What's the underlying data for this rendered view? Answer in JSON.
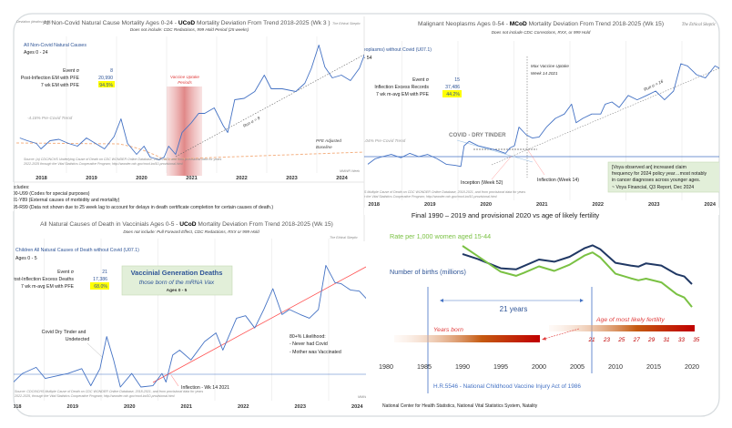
{
  "colors": {
    "series_blue": "#4472c4",
    "trend_red": "#ff5050",
    "baseline_orange": "#f4b183",
    "births_navy": "#203864",
    "rate_green": "#7ac143",
    "highlight_yellow": "#ffff00",
    "vaccine_band": "#e8a0a0"
  },
  "panels": {
    "top_left": {
      "title_pre": "All Non-Covid Natural Cause Mortality Ages 0-24 - ",
      "title_bold": "UCoD",
      "title_post": " Mortality Deviation From Trend  2018-2025 (Wk 3 )",
      "subtitle": "Does not include: CDC Redactions, 999 Hold Period (25 weeks)",
      "signature": "The Ethical Skeptic",
      "yaxis_label": "Deviation (deaths/week)",
      "series_label": "All Non-Covid Natural Causes",
      "ages": "Ages 0 - 24",
      "stats": [
        {
          "label": "Event σ",
          "value": "8"
        },
        {
          "label": "Post-Inflection EM with PFE",
          "value": "20,990"
        },
        {
          "label": "7 wk EM with PFE",
          "value": "94.5%"
        }
      ],
      "vaccine_label_1": "Vaccine Uptake",
      "vaccine_label_2": "Periods",
      "pre_covid_trend": "-4.18% Pre-Covid Trend",
      "run_sigma": "Run σ = 9",
      "pfe_label_1": "PFE Adjusted",
      "pfe_label_2": "Baseline",
      "source_1": "Source: (a) CDC/NCHS Underlying Cause of Death on CDC WONDER Online Database, 2018-2021, and from provisional data for years",
      "source_2": "2022-2025 through the Vital Statistics Cooperative Program; http://wonder.cdc.gov/mcd-icd10-provisional.html",
      "mmwr": "MMWR Week"
    },
    "excludes": {
      "heading": "Excludes:",
      "lines": [
        "R00-U99 (Codes for special purposes)",
        "V01-Y89 (External causes of morbidity and mortality)",
        "R95-R99 (Data not shown due to 25 week lag to account for delays in death certificate completion for certain causes of death.)"
      ]
    },
    "top_right": {
      "title_pre": "Malignant Neoplasms Ages 0-54 - ",
      "title_bold": "MCoD",
      "title_post": " Mortality Deviation From Trend  2018-2025 (Wk 15)",
      "subtitle": "Does not include CDC Corrections, RXX, or 999 Hold",
      "signature": "The Ethical Skeptic",
      "series_label": "C00-D48 (Malignant neoplasms) without Covid (U07.1)",
      "ages": "Ages 0 - 54",
      "stats": [
        {
          "label": "Event σ",
          "value": "15"
        },
        {
          "label": "Inflection Excess Records",
          "value": "37,486"
        },
        {
          "label": "7 wk m-avg EM with PFE",
          "value": "44.2%"
        }
      ],
      "max_uptake_1": "Max Vaccine Uptake",
      "max_uptake_2": "Week 14 2021",
      "run_sigma": "Run σ = 16",
      "dry_tinder": "COVID - DRY TINDER",
      "pre_covid_trend": "-0.04% Pre-Covid Trend",
      "inception": "Inception (Week 52)",
      "inflection": "Inflection (Week 14)",
      "quote_1": "[Voya observed an] increased claim",
      "quote_2": "frequency for 2024 policy year…most notably",
      "quote_3": "in cancer diagnoses across younger ages.",
      "quote_4": "~ Voya Financial, Q3 Report, Dec 2024",
      "source_1": "Source: CDC/NCHS Multiple Cause of Death on CDC WONDER Online Database, 2018-2021, and from provisional data for years",
      "source_2": "2022-2025, through the Vital Statistics Cooperative Program; http://wonder.cdc.gov/mcd-icd10-provisional.html"
    },
    "bottom_left": {
      "title_pre": "All Natural Causes of Death in Vaccinials Ages 0-5 - ",
      "title_bold": "UCoD",
      "title_post": " Mortality Deviation From Trend  2018-2025 (Wk 15)",
      "subtitle": "Does not include: Pull Forward Effect, CDC Redactions, RXX or 999 Hold",
      "signature": "The Ethical Skeptic",
      "series_label": "Children All Natural Causes of Death without Covid (U07.1)",
      "ages": "Ages 0 - 5",
      "stats": [
        {
          "label": "Event σ",
          "value": "21"
        },
        {
          "label": "Post-Inflection Excess Deaths",
          "value": "17,386"
        },
        {
          "label": "7 wk m-avg EM with PFE",
          "value": "68.0%"
        }
      ],
      "box_title": "Vaccinial Generation Deaths",
      "box_sub": "those born of the mRNA Vax",
      "box_ages": "Ages 0 - 5",
      "tinder_1": "Covid Dry Tinder and",
      "tinder_2": "Undetected",
      "likelihood_title": "80+% Likelihood:",
      "likelihood_1": "- Never had Covid",
      "likelihood_2": "- Mother was Vaccinated",
      "inflection": "Inflection - Wk 14 2021",
      "source_1": "Source: CDC/NCHS Multiple Cause of Death on CDC WONDER Online Database, 2018-2021, and from provisional data for years",
      "source_2": "2022-2025, through the Vital Statistics Cooperative Program; http://wonder.cdc.gov/mcd-icd10-provisional.html",
      "mmwr": "MMWR"
    },
    "bottom_right": {
      "title": "Final 1990 – 2019 and provisional 2020 vs age of likely fertility",
      "rate_label": "Rate per 1,000 women aged 15-44",
      "births_label": "Number of births (millions)",
      "span_label": "21 years",
      "years_born": "Years born",
      "fertility_label": "Age of most likely fertility",
      "ages": [
        "21",
        "23",
        "25",
        "27",
        "29",
        "31",
        "33",
        "35"
      ],
      "act_label": "H.R.5546 - National Childhood Vaccine Injury Act of 1986",
      "source": "National Center for Health Statistics, National Vital Statistics System, Natality"
    }
  },
  "chart_data": [
    {
      "type": "line",
      "title": "All Non-Covid Natural Cause Mortality Ages 0-24 - UCoD Mortality Deviation From Trend  2018-2025 (Wk 3 )",
      "ylabel": "Deviation (deaths/week)",
      "x_ticks": [
        "2018",
        "2019",
        "2020",
        "2021",
        "2022",
        "2023",
        "2024"
      ],
      "grid": "vertical",
      "series": [
        {
          "color": "#4472c4",
          "x": [
            2018.07,
            2018.22,
            2018.4,
            2018.49,
            2018.67,
            2018.85,
            2019.04,
            2019.22,
            2019.4,
            2019.58,
            2019.76,
            2019.95,
            2020.09,
            2020.22,
            2020.4,
            2020.55,
            2020.67,
            2020.85,
            2020.95,
            2021.04,
            2021.18,
            2021.31,
            2021.49,
            2021.64,
            2021.76,
            2021.95,
            2022.13,
            2022.22,
            2022.36,
            2022.55,
            2022.76,
            2022.95,
            2023.09,
            2023.31,
            2023.58,
            2023.76,
            2023.89,
            2024.04,
            2024.16,
            2024.31,
            2024.49,
            2024.67,
            2024.85,
            2024.95
          ],
          "y": [
            29,
            27,
            25,
            21,
            27,
            28,
            25,
            23,
            29,
            25,
            21,
            30,
            43,
            25,
            17,
            23,
            15,
            13,
            15,
            23,
            17,
            33,
            40,
            47,
            47,
            51,
            38,
            33,
            57,
            58,
            63,
            75,
            65,
            65,
            63,
            69,
            80,
            97,
            81,
            73,
            75,
            71,
            80,
            90
          ]
        }
      ]
    },
    {
      "type": "line",
      "title": "Malignant Neoplasms Ages 0-54 - MCoD Mortality Deviation From Trend  2018-2025 (Wk 15)",
      "x_ticks": [
        "2018",
        "2019",
        "2020",
        "2021",
        "2022",
        "2023",
        "2024"
      ],
      "grid": "vertical",
      "series": [
        {
          "color": "#4472c4",
          "x": [
            2018.39,
            2018.52,
            2018.65,
            2018.81,
            2018.98,
            2019.14,
            2019.3,
            2019.46,
            2019.63,
            2019.79,
            2019.95,
            2020.05,
            2020.11,
            2020.2,
            2020.36,
            2020.52,
            2020.68,
            2020.85,
            2020.93,
            2021.01,
            2021.09,
            2021.22,
            2021.33,
            2021.45,
            2021.58,
            2021.74,
            2021.9,
            2022.03,
            2022.11,
            2022.23,
            2022.39,
            2022.55,
            2022.63,
            2022.75,
            2022.88,
            2023.04,
            2023.2,
            2023.37,
            2023.53,
            2023.69,
            2023.85,
            2023.98,
            2024.1,
            2024.26,
            2024.42,
            2024.59,
            2024.67
          ],
          "y": [
            8,
            13,
            15,
            17,
            14,
            18,
            15,
            17,
            13,
            8,
            7,
            6,
            25,
            29,
            25,
            23,
            21,
            18,
            23,
            25,
            42,
            35,
            32,
            33,
            42,
            50,
            54,
            63,
            46,
            50,
            54,
            54,
            63,
            65,
            60,
            71,
            67,
            71,
            75,
            67,
            75,
            100,
            98,
            90,
            87,
            98,
            96
          ]
        }
      ]
    },
    {
      "type": "line",
      "title": "All Natural Causes of Death in Vaccinials Ages 0-5 - UCoD Mortality Deviation From Trend  2018-2025 (Wk 15)",
      "x_ticks": [
        "2018",
        "2019",
        "2020",
        "2021",
        "2022",
        "2023",
        "2024"
      ],
      "grid": "vertical",
      "series": [
        {
          "color": "#4472c4",
          "x": [
            2018.46,
            2018.62,
            2018.86,
            2019.02,
            2019.42,
            2019.66,
            2019.82,
            2019.98,
            2020.1,
            2020.22,
            2020.34,
            2020.54,
            2020.7,
            2020.91,
            2021.07,
            2021.14,
            2021.26,
            2021.38,
            2021.58,
            2021.82,
            2022.02,
            2022.14,
            2022.38,
            2022.54,
            2022.7,
            2022.86,
            2023.02,
            2023.18,
            2023.31,
            2023.5,
            2023.66,
            2023.82,
            2023.95,
            2024.11,
            2024.22,
            2024.38,
            2024.54,
            2024.66
          ],
          "y": [
            4,
            11,
            16,
            7,
            11,
            15,
            1,
            15,
            41,
            22,
            0,
            11,
            0,
            1,
            11,
            4,
            26,
            30,
            22,
            37,
            44,
            30,
            56,
            58,
            48,
            63,
            80,
            59,
            63,
            59,
            56,
            63,
            99,
            85,
            84,
            79,
            78,
            72
          ]
        }
      ]
    },
    {
      "type": "line",
      "title": "Final 1990 – 2019 and provisional 2020 vs age of likely fertility",
      "x_ticks": [
        "1980",
        "1985",
        "1990",
        "1995",
        "2000",
        "2005",
        "2010",
        "2015",
        "2020"
      ],
      "series": [
        {
          "name": "Number of births (millions)",
          "color": "#203864",
          "x": [
            1990,
            1992,
            1995,
            1997,
            1998,
            2000,
            2002,
            2004,
            2006,
            2007,
            2008,
            2010,
            2012,
            2013,
            2014,
            2016,
            2018,
            2019,
            2020
          ],
          "y": [
            4.16,
            4.07,
            3.9,
            3.88,
            3.94,
            4.06,
            4.02,
            4.11,
            4.27,
            4.32,
            4.25,
            4.0,
            3.95,
            3.93,
            3.99,
            3.95,
            3.79,
            3.75,
            3.61
          ]
        },
        {
          "name": "Rate per 1,000 women aged 15-44",
          "color": "#7ac143",
          "x": [
            1990,
            1992,
            1995,
            1997,
            1998,
            2000,
            2002,
            2004,
            2006,
            2007,
            2008,
            2010,
            2012,
            2013,
            2014,
            2016,
            2018,
            2019,
            2020
          ],
          "y": [
            70.9,
            68.4,
            64.6,
            63.6,
            64.3,
            65.9,
            64.8,
            66.3,
            68.6,
            69.3,
            68.1,
            64.1,
            63.0,
            62.5,
            62.9,
            62.0,
            59.1,
            58.3,
            56.0
          ]
        }
      ]
    }
  ]
}
